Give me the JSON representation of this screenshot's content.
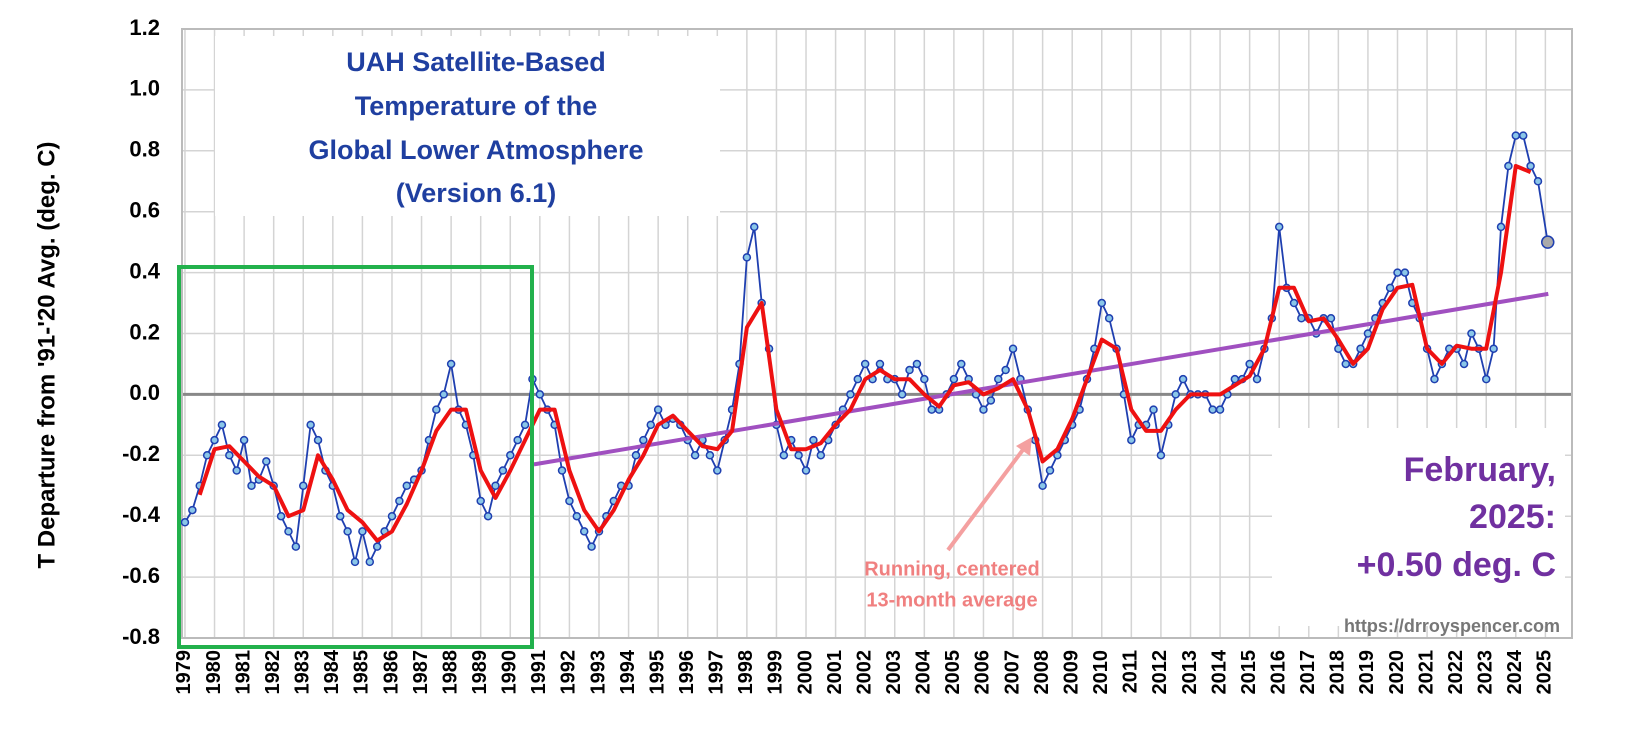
{
  "chart_data": {
    "type": "line",
    "title": [
      "UAH Satellite-Based",
      "Temperature of the",
      "Global Lower Atmosphere",
      "(Version 6.1)"
    ],
    "y_label": "T Departure from '91-'20 Avg. (deg. C)",
    "annotation_latest": [
      "February,",
      "2025:",
      "+0.50 deg. C"
    ],
    "annotation_average": [
      "Running, centered",
      "13-month average"
    ],
    "source": "https://drroyspencer.com",
    "xlim": [
      1978.9,
      2025.9
    ],
    "xticks": [
      1979,
      1980,
      1981,
      1982,
      1983,
      1984,
      1985,
      1986,
      1987,
      1988,
      1989,
      1990,
      1991,
      1992,
      1993,
      1994,
      1995,
      1996,
      1997,
      1998,
      1999,
      2000,
      2001,
      2002,
      2003,
      2004,
      2005,
      2006,
      2007,
      2008,
      2009,
      2010,
      2011,
      2012,
      2013,
      2014,
      2015,
      2016,
      2017,
      2018,
      2019,
      2020,
      2021,
      2022,
      2023,
      2024,
      2025
    ],
    "ylim": [
      -0.8,
      1.2
    ],
    "yticks": [
      -0.8,
      -0.6,
      -0.4,
      -0.2,
      {
        "value": 0,
        "label": "0.0"
      },
      0.2,
      0.4,
      0.6,
      0.8,
      {
        "value": 1,
        "label": "1.0"
      },
      1.2
    ],
    "grid": true,
    "series": [
      {
        "color": "#1f3fb0",
        "x": [
          1979,
          1979.25,
          1979.5,
          1979.75,
          1980,
          1980.25,
          1980.5,
          1980.75,
          1981,
          1981.25,
          1981.5,
          1981.75,
          1982,
          1982.25,
          1982.5,
          1982.75,
          1983,
          1983.25,
          1983.5,
          1983.75,
          1984,
          1984.25,
          1984.5,
          1984.75,
          1985,
          1985.25,
          1985.5,
          1985.75,
          1986,
          1986.25,
          1986.5,
          1986.75,
          1987,
          1987.25,
          1987.5,
          1987.75,
          1988,
          1988.25,
          1988.5,
          1988.75,
          1989,
          1989.25,
          1989.5,
          1989.75,
          1990,
          1990.25,
          1990.5,
          1990.75,
          1991,
          1991.25,
          1991.5,
          1991.75,
          1992,
          1992.25,
          1992.5,
          1992.75,
          1993,
          1993.25,
          1993.5,
          1993.75,
          1994,
          1994.25,
          1994.5,
          1994.75,
          1995,
          1995.25,
          1995.5,
          1995.75,
          1996,
          1996.25,
          1996.5,
          1996.75,
          1997,
          1997.25,
          1997.5,
          1997.75,
          1998,
          1998.25,
          1998.5,
          1998.75,
          1999,
          1999.25,
          1999.5,
          1999.75,
          2000,
          2000.25,
          2000.5,
          2000.75,
          2001,
          2001.25,
          2001.5,
          2001.75,
          2002,
          2002.25,
          2002.5,
          2002.75,
          2003,
          2003.25,
          2003.5,
          2003.75,
          2004,
          2004.25,
          2004.5,
          2004.75,
          2005,
          2005.25,
          2005.5,
          2005.75,
          2006,
          2006.25,
          2006.5,
          2006.75,
          2007,
          2007.25,
          2007.5,
          2007.75,
          2008,
          2008.25,
          2008.5,
          2008.75,
          2009,
          2009.25,
          2009.5,
          2009.75,
          2010,
          2010.25,
          2010.5,
          2010.75,
          2011,
          2011.25,
          2011.5,
          2011.75,
          2012,
          2012.25,
          2012.5,
          2012.75,
          2013,
          2013.25,
          2013.5,
          2013.75,
          2014,
          2014.25,
          2014.5,
          2014.75,
          2015,
          2015.25,
          2015.5,
          2015.75,
          2016,
          2016.25,
          2016.5,
          2016.75,
          2017,
          2017.25,
          2017.5,
          2017.75,
          2018,
          2018.25,
          2018.5,
          2018.75,
          2019,
          2019.25,
          2019.5,
          2019.75,
          2020,
          2020.25,
          2020.5,
          2020.75,
          2021,
          2021.25,
          2021.5,
          2021.75,
          2022,
          2022.25,
          2022.5,
          2022.75,
          2023,
          2023.25,
          2023.5,
          2023.75,
          2024,
          2024.25,
          2024.5,
          2024.75,
          2025.08
        ],
        "values": [
          -0.42,
          -0.38,
          -0.3,
          -0.2,
          -0.15,
          -0.1,
          -0.2,
          -0.25,
          -0.15,
          -0.3,
          -0.28,
          -0.22,
          -0.3,
          -0.4,
          -0.45,
          -0.5,
          -0.3,
          -0.1,
          -0.15,
          -0.25,
          -0.3,
          -0.4,
          -0.45,
          -0.55,
          -0.45,
          -0.55,
          -0.5,
          -0.45,
          -0.4,
          -0.35,
          -0.3,
          -0.28,
          -0.25,
          -0.15,
          -0.05,
          0,
          0.1,
          -0.05,
          -0.1,
          -0.2,
          -0.35,
          -0.4,
          -0.3,
          -0.25,
          -0.2,
          -0.15,
          -0.1,
          0.05,
          0,
          -0.05,
          -0.1,
          -0.25,
          -0.35,
          -0.4,
          -0.45,
          -0.5,
          -0.45,
          -0.4,
          -0.35,
          -0.3,
          -0.3,
          -0.2,
          -0.15,
          -0.1,
          -0.05,
          -0.1,
          -0.08,
          -0.1,
          -0.15,
          -0.2,
          -0.15,
          -0.2,
          -0.25,
          -0.15,
          -0.05,
          0.1,
          0.45,
          0.55,
          0.3,
          0.15,
          -0.1,
          -0.2,
          -0.15,
          -0.2,
          -0.25,
          -0.15,
          -0.2,
          -0.15,
          -0.1,
          -0.05,
          0,
          0.05,
          0.1,
          0.05,
          0.1,
          0.05,
          0.05,
          0,
          0.08,
          0.1,
          0.05,
          -0.05,
          -0.05,
          0,
          0.05,
          0.1,
          0.05,
          0,
          -0.05,
          -0.02,
          0.05,
          0.08,
          0.15,
          0.05,
          -0.05,
          -0.15,
          -0.3,
          -0.25,
          -0.2,
          -0.15,
          -0.1,
          -0.05,
          0.05,
          0.15,
          0.3,
          0.25,
          0.15,
          0,
          -0.15,
          -0.1,
          -0.1,
          -0.05,
          -0.2,
          -0.1,
          0,
          0.05,
          0,
          0,
          0,
          -0.05,
          -0.05,
          0,
          0.05,
          0.05,
          0.1,
          0.05,
          0.15,
          0.25,
          0.55,
          0.35,
          0.3,
          0.25,
          0.25,
          0.2,
          0.25,
          0.25,
          0.15,
          0.1,
          0.1,
          0.15,
          0.2,
          0.25,
          0.3,
          0.35,
          0.4,
          0.4,
          0.3,
          0.25,
          0.15,
          0.05,
          0.1,
          0.15,
          0.15,
          0.1,
          0.2,
          0.15,
          0.05,
          0.15,
          0.55,
          0.75,
          0.85,
          0.85,
          0.75,
          0.7,
          0.5
        ]
      },
      {
        "color": "#ee1111",
        "x": [
          1979.5,
          1980,
          1980.5,
          1981,
          1981.5,
          1982,
          1982.5,
          1983,
          1983.5,
          1984,
          1984.5,
          1985,
          1985.5,
          1986,
          1986.5,
          1987,
          1987.5,
          1988,
          1988.5,
          1989,
          1989.5,
          1990,
          1990.5,
          1991,
          1991.5,
          1992,
          1992.5,
          1993,
          1993.5,
          1994,
          1994.5,
          1995,
          1995.5,
          1996,
          1996.5,
          1997,
          1997.5,
          1998,
          1998.5,
          1999,
          1999.5,
          2000,
          2000.5,
          2001,
          2001.5,
          2002,
          2002.5,
          2003,
          2003.5,
          2004,
          2004.5,
          2005,
          2005.5,
          2006,
          2006.5,
          2007,
          2007.5,
          2008,
          2008.5,
          2009,
          2009.5,
          2010,
          2010.5,
          2011,
          2011.5,
          2012,
          2012.5,
          2013,
          2013.5,
          2014,
          2014.5,
          2015,
          2015.5,
          2016,
          2016.5,
          2017,
          2017.5,
          2018,
          2018.5,
          2019,
          2019.5,
          2020,
          2020.5,
          2021,
          2021.5,
          2022,
          2022.5,
          2023,
          2023.5,
          2024,
          2024.5
        ],
        "values": [
          -0.33,
          -0.18,
          -0.17,
          -0.22,
          -0.27,
          -0.3,
          -0.4,
          -0.38,
          -0.2,
          -0.28,
          -0.38,
          -0.42,
          -0.48,
          -0.45,
          -0.36,
          -0.25,
          -0.12,
          -0.05,
          -0.05,
          -0.25,
          -0.34,
          -0.25,
          -0.15,
          -0.05,
          -0.05,
          -0.25,
          -0.38,
          -0.45,
          -0.38,
          -0.28,
          -0.2,
          -0.1,
          -0.07,
          -0.12,
          -0.17,
          -0.18,
          -0.12,
          0.22,
          0.3,
          -0.05,
          -0.18,
          -0.18,
          -0.16,
          -0.1,
          -0.05,
          0.05,
          0.08,
          0.05,
          0.05,
          0,
          -0.04,
          0.03,
          0.04,
          0,
          0.02,
          0.05,
          -0.05,
          -0.22,
          -0.18,
          -0.08,
          0.05,
          0.18,
          0.15,
          -0.05,
          -0.12,
          -0.12,
          -0.05,
          0,
          0,
          0,
          0.03,
          0.06,
          0.15,
          0.35,
          0.35,
          0.24,
          0.25,
          0.18,
          0.1,
          0.15,
          0.28,
          0.35,
          0.36,
          0.15,
          0.1,
          0.16,
          0.15,
          0.15,
          0.4,
          0.75,
          0.73
        ]
      },
      {
        "color": "#a050c0",
        "x": [
          1990.8,
          2025.1
        ],
        "values": [
          -0.23,
          0.33
        ]
      }
    ]
  }
}
